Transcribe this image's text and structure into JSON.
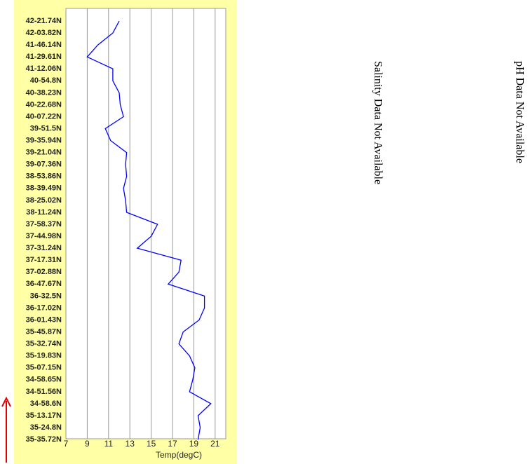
{
  "chart_data": {
    "type": "line",
    "categories": [
      "42-21.74N",
      "42-03.82N",
      "41-46.14N",
      "41-29.61N",
      "41-12.06N",
      "40-54.8N",
      "40-38.23N",
      "40-22.68N",
      "40-07.22N",
      "39-51.5N",
      "39-35.94N",
      "39-21.04N",
      "39-07.36N",
      "38-53.86N",
      "38-39.49N",
      "38-25.02N",
      "38-11.24N",
      "37-58.37N",
      "37-44.98N",
      "37-31.24N",
      "37-17.31N",
      "37-02.88N",
      "36-47.67N",
      "36-32.5N",
      "36-17.02N",
      "36-01.43N",
      "35-45.87N",
      "35-32.74N",
      "35-19.83N",
      "35-07.15N",
      "34-58.65N",
      "34-51.56N",
      "34-58.6N",
      "35-13.17N",
      "35-24.8N",
      "35-35.72N"
    ],
    "values": [
      12.0,
      11.4,
      10.0,
      9.0,
      11.4,
      11.4,
      12.0,
      12.1,
      12.4,
      10.7,
      11.2,
      12.7,
      12.6,
      12.7,
      12.4,
      12.6,
      12.7,
      15.6,
      15.0,
      13.7,
      17.8,
      17.6,
      16.6,
      20.0,
      20.0,
      19.5,
      18.0,
      17.6,
      18.6,
      19.1,
      18.9,
      18.6,
      20.6,
      19.4,
      19.6,
      19.4
    ],
    "color": "#0000ff",
    "xlim": [
      7,
      22
    ],
    "xticks": [
      7,
      9,
      11,
      13,
      15,
      17,
      19,
      21
    ],
    "xlabel": "Temp(degC)",
    "grid": true,
    "annotations": [
      "Salinity Data Not Available",
      "pH Data Not Available"
    ]
  }
}
